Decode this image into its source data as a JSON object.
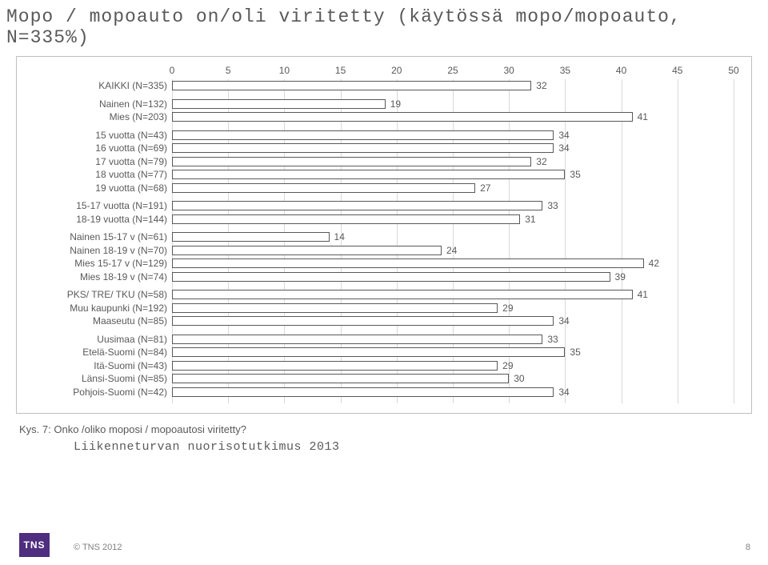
{
  "title": "Mopo / mopoauto on/oli viritetty (käytössä mopo/mopoauto, N=335%)",
  "chart": {
    "type": "bar",
    "xlim": [
      0,
      50
    ],
    "xtick_step": 5,
    "bar_fill": "#ffffff",
    "bar_border": "#595959",
    "bar_border_width": 1.2,
    "grid_color": "#d9d9d9",
    "label_color": "#595959",
    "label_fontsize": 12,
    "groups": [
      [
        {
          "label": "KAIKKI (N=335)",
          "value": 32
        }
      ],
      [
        {
          "label": "Nainen (N=132)",
          "value": 19
        },
        {
          "label": "Mies (N=203)",
          "value": 41
        }
      ],
      [
        {
          "label": "15 vuotta (N=43)",
          "value": 34
        },
        {
          "label": "16 vuotta (N=69)",
          "value": 34
        },
        {
          "label": "17 vuotta (N=79)",
          "value": 32
        },
        {
          "label": "18 vuotta (N=77)",
          "value": 35
        },
        {
          "label": "19 vuotta (N=68)",
          "value": 27
        }
      ],
      [
        {
          "label": "15-17 vuotta (N=191)",
          "value": 33
        },
        {
          "label": "18-19 vuotta (N=144)",
          "value": 31
        }
      ],
      [
        {
          "label": "Nainen 15-17 v (N=61)",
          "value": 14
        },
        {
          "label": "Nainen 18-19 v (N=70)",
          "value": 24
        },
        {
          "label": "Mies 15-17 v (N=129)",
          "value": 42
        },
        {
          "label": "Mies 18-19 v (N=74)",
          "value": 39
        }
      ],
      [
        {
          "label": "PKS/ TRE/ TKU (N=58)",
          "value": 41
        },
        {
          "label": "Muu kaupunki (N=192)",
          "value": 29
        },
        {
          "label": "Maaseutu (N=85)",
          "value": 34
        }
      ],
      [
        {
          "label": "Uusimaa (N=81)",
          "value": 33
        },
        {
          "label": "Etelä-Suomi (N=84)",
          "value": 35
        },
        {
          "label": "Itä-Suomi (N=43)",
          "value": 29
        },
        {
          "label": "Länsi-Suomi (N=85)",
          "value": 30
        },
        {
          "label": "Pohjois-Suomi (N=42)",
          "value": 34
        }
      ]
    ]
  },
  "caption": "Kys. 7: Onko /oliko moposi / mopoautosi viritetty?",
  "subtitle": "Liikenneturvan nuorisotutkimus 2013",
  "logo": "TNS",
  "copyright": "© TNS 2012",
  "page_number": "8"
}
